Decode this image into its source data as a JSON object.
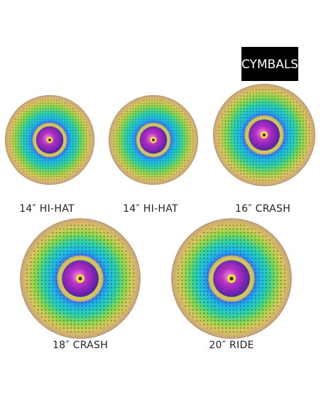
{
  "badge": "CYMBALS",
  "cymbals": [
    {
      "label": "14″ HI-HAT"
    },
    {
      "label": "14″ HI-HAT"
    },
    {
      "label": "16″ CRASH"
    },
    {
      "label": "18″ CRASH"
    },
    {
      "label": "20″ RIDE"
    }
  ]
}
